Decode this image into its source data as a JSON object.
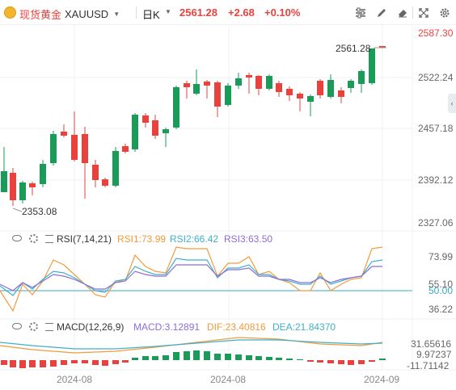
{
  "toolbar": {
    "symbol_name": "现货黄金",
    "symbol_code": "XAUUSD",
    "period": "日K",
    "price": "2561.28",
    "change": "+2.68",
    "change_pct": "+0.10%"
  },
  "main_chart": {
    "y_ticks": [
      "2587.30",
      "2522.24",
      "2457.18",
      "2392.12",
      "2327.06"
    ],
    "last_price_label": "2561.28",
    "low_label": "2353.08"
  },
  "rsi_panel": {
    "title": "RSI(7,14,21)",
    "rsi1": "RSI1:73.99",
    "rsi2": "RSI2:66.42",
    "rsi3": "RSI3:63.50",
    "y_ticks": [
      "73.99",
      "55.10",
      "50.00",
      "36.22"
    ]
  },
  "macd_panel": {
    "title": "MACD(12,26,9)",
    "macd": "MACD:3.12891",
    "dif": "DIF:23.40816",
    "dea": "DEA:21.84370",
    "y_ticks": [
      "31.65616",
      "9.97237",
      "-11.71142"
    ]
  },
  "x_axis": [
    "2024-08",
    "2024-08",
    "2024-09"
  ],
  "colors": {
    "up": "#e8423f",
    "down": "#1a9b57",
    "rsi1": "#f39a3b",
    "rsi2": "#3fb0c9",
    "rsi3": "#8c6ed8",
    "macd": "#8c6ed8",
    "dif": "#f39a3b",
    "dea": "#3fb0c9",
    "threshold": "#3fa7c4"
  }
}
